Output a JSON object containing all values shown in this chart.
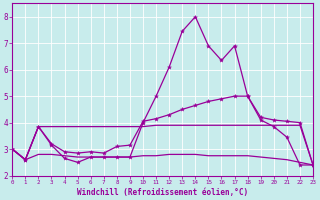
{
  "xlabel": "Windchill (Refroidissement éolien,°C)",
  "background_color": "#c8ecec",
  "line_color": "#990099",
  "grid_color": "#ffffff",
  "x_hours": [
    0,
    1,
    2,
    3,
    4,
    5,
    6,
    7,
    8,
    9,
    10,
    11,
    12,
    13,
    14,
    15,
    16,
    17,
    18,
    19,
    20,
    21,
    22,
    23
  ],
  "line1": [
    3.0,
    2.6,
    3.85,
    3.15,
    2.65,
    2.5,
    2.7,
    2.7,
    2.7,
    2.7,
    4.0,
    5.0,
    6.1,
    7.45,
    8.0,
    6.9,
    6.35,
    6.9,
    5.0,
    4.1,
    3.85,
    3.45,
    2.4,
    2.4
  ],
  "line2": [
    3.0,
    2.6,
    3.85,
    3.2,
    2.9,
    2.85,
    2.9,
    2.85,
    3.1,
    3.15,
    4.05,
    4.15,
    4.3,
    4.5,
    4.65,
    4.8,
    4.9,
    5.0,
    5.0,
    4.2,
    4.1,
    4.05,
    4.0,
    2.4
  ],
  "line3": [
    3.0,
    2.6,
    3.85,
    3.85,
    3.85,
    3.85,
    3.85,
    3.85,
    3.85,
    3.85,
    3.85,
    3.9,
    3.9,
    3.9,
    3.9,
    3.9,
    3.9,
    3.9,
    3.9,
    3.9,
    3.9,
    3.9,
    3.9,
    2.4
  ],
  "line4": [
    3.0,
    2.6,
    2.8,
    2.8,
    2.75,
    2.7,
    2.7,
    2.7,
    2.7,
    2.7,
    2.75,
    2.75,
    2.8,
    2.8,
    2.8,
    2.75,
    2.75,
    2.75,
    2.75,
    2.7,
    2.65,
    2.6,
    2.5,
    2.4
  ],
  "xlim": [
    0,
    23
  ],
  "ylim": [
    2.0,
    8.5
  ],
  "yticks": [
    2,
    3,
    4,
    5,
    6,
    7,
    8
  ],
  "xticks": [
    0,
    1,
    2,
    3,
    4,
    5,
    6,
    7,
    8,
    9,
    10,
    11,
    12,
    13,
    14,
    15,
    16,
    17,
    18,
    19,
    20,
    21,
    22,
    23
  ]
}
